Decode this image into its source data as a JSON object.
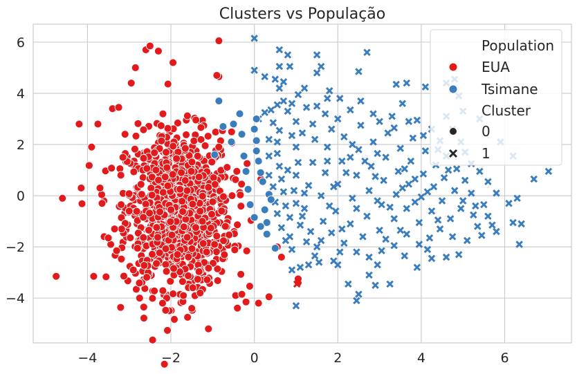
{
  "chart_data": {
    "type": "scatter",
    "title": "Clusters vs População",
    "xlabel": "",
    "ylabel": "",
    "xlim": [
      -5.3,
      7.6
    ],
    "ylim": [
      -5.75,
      6.7
    ],
    "xticks": [
      -4,
      -2,
      0,
      2,
      4,
      6
    ],
    "yticks": [
      -4,
      -2,
      0,
      2,
      4,
      6
    ],
    "grid": true,
    "legend_placement": "top-right",
    "legend": {
      "hue_title": "Population",
      "hue_items": [
        {
          "label": "EUA",
          "color": "#e31a1c"
        },
        {
          "label": "Tsimane",
          "color": "#3a7dbd"
        }
      ],
      "style_title": "Cluster",
      "style_items": [
        {
          "label": "0",
          "marker": "circle"
        },
        {
          "label": "1",
          "marker": "x"
        }
      ]
    },
    "series": [
      {
        "name": "EUA",
        "color": "#e31a1c",
        "cluster0_points": [
          [
            -4.75,
            -3.15
          ],
          [
            -4.6,
            -0.1
          ],
          [
            -4.2,
            2.8
          ],
          [
            -4.15,
            0.3
          ],
          [
            -3.9,
            1.9
          ],
          [
            -3.85,
            -3.15
          ],
          [
            -3.75,
            2.8
          ],
          [
            -3.7,
            0.3
          ],
          [
            -3.65,
            -0.3
          ],
          [
            -3.6,
            -1.6
          ],
          [
            -3.5,
            -1.65
          ],
          [
            -3.4,
            3.4
          ],
          [
            -3.35,
            -1.3
          ],
          [
            -3.25,
            3.45
          ],
          [
            -3.2,
            0.8
          ],
          [
            -3.1,
            2.4
          ],
          [
            -3.0,
            -0.6
          ],
          [
            -2.95,
            4.4
          ],
          [
            -2.85,
            5.0
          ],
          [
            -2.8,
            -2.05
          ],
          [
            -2.75,
            -4.0
          ],
          [
            -2.65,
            -4.35
          ],
          [
            -2.6,
            5.7
          ],
          [
            -2.5,
            5.85
          ],
          [
            -2.3,
            5.65
          ],
          [
            -2.1,
            -4.0
          ],
          [
            -1.95,
            5.2
          ],
          [
            -1.7,
            -3.9
          ],
          [
            -1.6,
            -4.75
          ],
          [
            -1.5,
            -4.4
          ],
          [
            -1.3,
            -3.8
          ],
          [
            -1.1,
            -5.2
          ],
          [
            -0.85,
            6.05
          ],
          [
            -0.85,
            4.65
          ],
          [
            -0.45,
            -3.9
          ],
          [
            -0.3,
            -3.85
          ],
          [
            -0.2,
            -4.15
          ],
          [
            0.1,
            -4.2
          ],
          [
            0.35,
            -3.95
          ],
          [
            0.55,
            -2.0
          ],
          [
            0.65,
            -2.4
          ],
          [
            1.05,
            -3.4
          ],
          [
            1.05,
            -3.25
          ],
          [
            -0.9,
            4.7
          ],
          [
            -3.15,
            1.5
          ],
          [
            -2.9,
            -2.9
          ],
          [
            -3.3,
            -2.15
          ],
          [
            -2.2,
            -4.2
          ]
        ],
        "cluster1_points": [
          [
            1.05,
            -3.3
          ],
          [
            1.02,
            -3.45
          ]
        ]
      },
      {
        "name": "Tsimane",
        "color": "#3a7dbd",
        "cluster0_points": [
          [
            -0.85,
            3.7
          ],
          [
            -0.75,
            2.7
          ],
          [
            -0.55,
            2.1
          ],
          [
            -0.5,
            2.8
          ],
          [
            -0.35,
            3.2
          ],
          [
            -0.3,
            2.4
          ],
          [
            -0.25,
            1.55
          ],
          [
            -0.2,
            0.95
          ],
          [
            -0.15,
            0.25
          ],
          [
            -0.1,
            -0.35
          ],
          [
            0.05,
            3.0
          ],
          [
            0.0,
            2.6
          ],
          [
            0.05,
            2.15
          ],
          [
            0.05,
            1.75
          ],
          [
            0.1,
            1.35
          ],
          [
            0.15,
            0.9
          ],
          [
            0.2,
            0.55
          ],
          [
            0.25,
            -0.55
          ],
          [
            0.3,
            -1.05
          ],
          [
            0.3,
            -1.5
          ],
          [
            0.35,
            0.05
          ],
          [
            0.4,
            -0.15
          ],
          [
            0.5,
            -2.05
          ],
          [
            -0.95,
            1.6
          ],
          [
            0.0,
            -0.85
          ],
          [
            0.15,
            -1.2
          ]
        ],
        "cluster1_points": [
          [
            0.0,
            6.15
          ],
          [
            0.0,
            4.9
          ],
          [
            0.25,
            4.65
          ],
          [
            0.5,
            4.55
          ],
          [
            0.6,
            5.05
          ],
          [
            0.6,
            4.2
          ],
          [
            0.7,
            4.45
          ],
          [
            0.85,
            5.05
          ],
          [
            0.6,
            5.7
          ],
          [
            0.8,
            5.5
          ],
          [
            1.5,
            5.5
          ],
          [
            1.6,
            5.05
          ],
          [
            1.5,
            4.8
          ],
          [
            2.5,
            4.85
          ],
          [
            2.7,
            5.6
          ],
          [
            3.4,
            4.35
          ],
          [
            3.65,
            4.4
          ],
          [
            4.1,
            4.25
          ],
          [
            4.6,
            4.4
          ],
          [
            4.8,
            4.55
          ],
          [
            4.9,
            3.9
          ],
          [
            5.0,
            3.3
          ],
          [
            5.4,
            3.0
          ],
          [
            5.9,
            2.1
          ],
          [
            6.2,
            1.55
          ],
          [
            7.05,
            0.95
          ],
          [
            6.7,
            0.65
          ],
          [
            6.3,
            -0.1
          ],
          [
            6.1,
            -0.3
          ],
          [
            6.4,
            -1.1
          ],
          [
            6.2,
            -1.05
          ],
          [
            6.35,
            -1.9
          ],
          [
            5.8,
            -1.4
          ],
          [
            5.7,
            -1.15
          ],
          [
            5.35,
            -1.2
          ],
          [
            5.1,
            -1.75
          ],
          [
            4.9,
            -2.3
          ],
          [
            4.6,
            -2.4
          ],
          [
            4.25,
            -2.45
          ],
          [
            3.9,
            -2.8
          ],
          [
            3.6,
            -2.35
          ],
          [
            3.25,
            -3.45
          ],
          [
            2.9,
            -3.5
          ],
          [
            2.75,
            -3.1
          ],
          [
            2.5,
            -3.85
          ],
          [
            2.45,
            -4.1
          ],
          [
            2.25,
            -3.45
          ],
          [
            2.0,
            -2.7
          ],
          [
            1.9,
            -2.55
          ],
          [
            1.45,
            -2.35
          ],
          [
            1.3,
            -2.7
          ],
          [
            0.85,
            -1.6
          ],
          [
            0.9,
            -2.9
          ],
          [
            1.0,
            -4.3
          ],
          [
            1.1,
            -2.8
          ],
          [
            0.1,
            3.0
          ],
          [
            0.25,
            3.25
          ],
          [
            0.4,
            3.35
          ],
          [
            0.55,
            3.55
          ],
          [
            0.7,
            3.7
          ],
          [
            0.8,
            3.3
          ],
          [
            0.9,
            3.6
          ],
          [
            1.05,
            3.95
          ],
          [
            1.2,
            4.2
          ],
          [
            1.5,
            3.5
          ],
          [
            1.75,
            3.8
          ],
          [
            1.8,
            4.1
          ],
          [
            2.05,
            3.8
          ],
          [
            2.3,
            3.35
          ],
          [
            2.55,
            3.7
          ],
          [
            2.85,
            3.2
          ],
          [
            3.0,
            2.9
          ],
          [
            3.3,
            3.1
          ],
          [
            3.55,
            3.6
          ],
          [
            3.9,
            2.95
          ],
          [
            4.25,
            2.6
          ],
          [
            4.45,
            2.15
          ],
          [
            4.6,
            3.1
          ],
          [
            4.75,
            2.6
          ],
          [
            4.95,
            2.1
          ],
          [
            5.05,
            1.7
          ],
          [
            5.2,
            1.25
          ],
          [
            5.4,
            0.95
          ],
          [
            5.6,
            0.55
          ],
          [
            5.8,
            0.1
          ],
          [
            5.5,
            -0.35
          ],
          [
            5.25,
            -0.75
          ],
          [
            4.95,
            -0.5
          ],
          [
            4.7,
            -0.9
          ],
          [
            4.45,
            -1.3
          ],
          [
            4.2,
            -1.65
          ],
          [
            3.95,
            -1.9
          ],
          [
            3.65,
            -1.5
          ],
          [
            3.35,
            -1.95
          ],
          [
            3.05,
            -2.15
          ],
          [
            2.75,
            -2.4
          ],
          [
            2.45,
            -2.2
          ],
          [
            2.15,
            -1.85
          ],
          [
            1.85,
            -1.45
          ],
          [
            1.6,
            -1.75
          ],
          [
            1.35,
            -1.4
          ],
          [
            1.1,
            -1.15
          ],
          [
            0.85,
            -0.85
          ],
          [
            0.75,
            -0.4
          ],
          [
            0.7,
            0.15
          ],
          [
            0.65,
            0.65
          ],
          [
            0.6,
            1.15
          ],
          [
            0.55,
            1.65
          ],
          [
            0.55,
            2.1
          ],
          [
            0.6,
            2.55
          ],
          [
            0.45,
            2.85
          ],
          [
            0.35,
            2.2
          ],
          [
            0.35,
            1.55
          ],
          [
            0.35,
            0.8
          ],
          [
            0.45,
            0.35
          ],
          [
            0.5,
            -0.25
          ],
          [
            0.55,
            -0.7
          ],
          [
            0.65,
            -1.25
          ],
          [
            0.75,
            -1.75
          ],
          [
            0.9,
            -2.1
          ],
          [
            1.2,
            -0.5
          ],
          [
            1.3,
            0.4
          ],
          [
            1.4,
            1.3
          ],
          [
            1.45,
            2.2
          ],
          [
            1.4,
            2.8
          ],
          [
            1.6,
            0.0
          ],
          [
            1.7,
            0.9
          ],
          [
            1.75,
            1.9
          ],
          [
            1.85,
            2.6
          ],
          [
            1.95,
            -0.6
          ],
          [
            2.0,
            0.45
          ],
          [
            2.1,
            1.35
          ],
          [
            2.15,
            2.3
          ],
          [
            2.3,
            -1.1
          ],
          [
            2.35,
            -0.1
          ],
          [
            2.45,
            0.8
          ],
          [
            2.5,
            1.8
          ],
          [
            2.55,
            2.75
          ],
          [
            2.7,
            -0.8
          ],
          [
            2.75,
            0.2
          ],
          [
            2.8,
            1.15
          ],
          [
            2.85,
            2.1
          ],
          [
            3.0,
            -1.35
          ],
          [
            3.05,
            -0.35
          ],
          [
            3.1,
            0.6
          ],
          [
            3.15,
            1.5
          ],
          [
            3.2,
            2.45
          ],
          [
            3.35,
            -0.9
          ],
          [
            3.4,
            0.05
          ],
          [
            3.45,
            0.95
          ],
          [
            3.5,
            1.85
          ],
          [
            3.65,
            -0.5
          ],
          [
            3.7,
            0.45
          ],
          [
            3.75,
            1.35
          ],
          [
            3.8,
            2.25
          ],
          [
            3.95,
            -1.05
          ],
          [
            4.0,
            -0.05
          ],
          [
            4.05,
            0.85
          ],
          [
            4.1,
            1.75
          ],
          [
            4.25,
            -0.6
          ],
          [
            4.3,
            0.35
          ],
          [
            4.35,
            1.2
          ],
          [
            4.5,
            -0.2
          ],
          [
            4.55,
            0.7
          ],
          [
            4.6,
            1.55
          ],
          [
            4.8,
            0.2
          ],
          [
            4.85,
            1.05
          ],
          [
            5.0,
            -0.2
          ],
          [
            5.05,
            0.6
          ],
          [
            5.2,
            0.1
          ],
          [
            1.0,
            2.9
          ],
          [
            1.15,
            2.45
          ],
          [
            1.0,
            1.9
          ],
          [
            1.05,
            1.3
          ],
          [
            1.0,
            0.8
          ],
          [
            0.95,
            0.2
          ],
          [
            1.0,
            -0.3
          ],
          [
            1.15,
            -0.8
          ],
          [
            1.25,
            -1.8
          ],
          [
            1.5,
            -2.0
          ],
          [
            1.65,
            -1.0
          ],
          [
            1.8,
            -0.4
          ],
          [
            1.9,
            0.35
          ],
          [
            2.2,
            0.9
          ],
          [
            2.3,
            1.5
          ],
          [
            2.65,
            1.35
          ],
          [
            2.9,
            0.75
          ],
          [
            2.95,
            -0.2
          ],
          [
            3.25,
            -0.45
          ],
          [
            3.55,
            0.3
          ],
          [
            3.6,
            1.05
          ],
          [
            3.85,
            0.65
          ],
          [
            4.15,
            0.15
          ],
          [
            4.4,
            -0.95
          ],
          [
            3.5,
            -1.35
          ],
          [
            2.6,
            -1.6
          ],
          [
            2.05,
            -2.2
          ],
          [
            1.7,
            3.2
          ],
          [
            2.0,
            3.0
          ],
          [
            2.35,
            2.0
          ],
          [
            2.95,
            1.65
          ],
          [
            3.35,
            2.65
          ],
          [
            3.7,
            2.9
          ],
          [
            4.05,
            2.35
          ],
          [
            4.4,
            1.8
          ],
          [
            4.65,
            1.0
          ],
          [
            5.3,
            -0.4
          ],
          [
            5.6,
            -0.8
          ],
          [
            4.15,
            -2.1
          ],
          [
            2.95,
            -2.7
          ],
          [
            1.55,
            -2.6
          ],
          [
            1.25,
            3.45
          ],
          [
            0.9,
            2.35
          ],
          [
            1.75,
            1.35
          ],
          [
            2.45,
            -0.5
          ],
          [
            3.85,
            -0.25
          ],
          [
            4.75,
            -1.6
          ],
          [
            5.45,
            -1.55
          ],
          [
            1.2,
            0.1
          ],
          [
            2.1,
            -1.3
          ],
          [
            3.15,
            -1.7
          ],
          [
            0.8,
            1.0
          ]
        ]
      }
    ]
  }
}
